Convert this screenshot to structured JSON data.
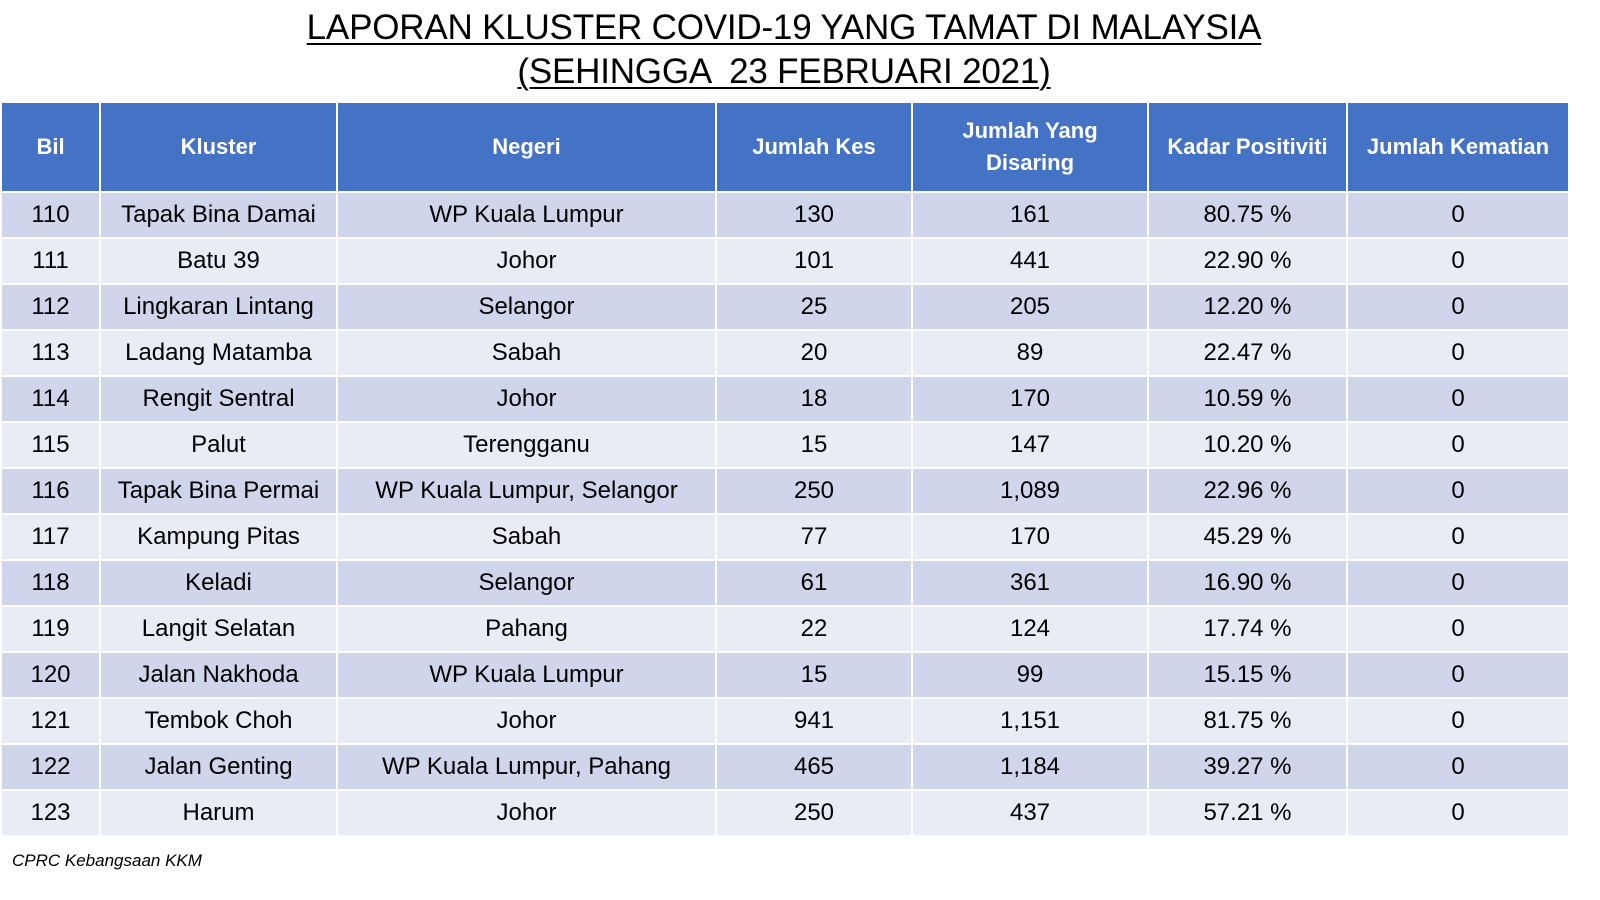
{
  "title": {
    "line1": "LAPORAN KLUSTER COVID-19 YANG TAMAT DI MALAYSIA",
    "line2": "(SEHINGGA  23 FEBRUARI 2021)"
  },
  "table": {
    "headers": {
      "bil": "Bil",
      "kluster": "Kluster",
      "negeri": "Negeri",
      "jumlah_kes": "Jumlah Kes",
      "jumlah_disaring": "Jumlah Yang Disaring",
      "kadar_positiviti": "Kadar Positiviti",
      "jumlah_kematian": "Jumlah Kematian"
    },
    "rows": [
      {
        "bil": "110",
        "kluster": "Tapak Bina Damai",
        "negeri": "WP Kuala Lumpur",
        "kes": "130",
        "disaring": "161",
        "positiviti": "80.75 %",
        "kematian": "0"
      },
      {
        "bil": "111",
        "kluster": "Batu 39",
        "negeri": "Johor",
        "kes": "101",
        "disaring": "441",
        "positiviti": "22.90 %",
        "kematian": "0"
      },
      {
        "bil": "112",
        "kluster": "Lingkaran Lintang",
        "negeri": "Selangor",
        "kes": "25",
        "disaring": "205",
        "positiviti": "12.20 %",
        "kematian": "0"
      },
      {
        "bil": "113",
        "kluster": "Ladang Matamba",
        "negeri": "Sabah",
        "kes": "20",
        "disaring": "89",
        "positiviti": "22.47 %",
        "kematian": "0"
      },
      {
        "bil": "114",
        "kluster": "Rengit Sentral",
        "negeri": "Johor",
        "kes": "18",
        "disaring": "170",
        "positiviti": "10.59 %",
        "kematian": "0"
      },
      {
        "bil": "115",
        "kluster": "Palut",
        "negeri": "Terengganu",
        "kes": "15",
        "disaring": "147",
        "positiviti": "10.20 %",
        "kematian": "0"
      },
      {
        "bil": "116",
        "kluster": "Tapak Bina Permai",
        "negeri": "WP Kuala Lumpur, Selangor",
        "kes": "250",
        "disaring": "1,089",
        "positiviti": "22.96 %",
        "kematian": "0"
      },
      {
        "bil": "117",
        "kluster": "Kampung Pitas",
        "negeri": "Sabah",
        "kes": "77",
        "disaring": "170",
        "positiviti": "45.29 %",
        "kematian": "0"
      },
      {
        "bil": "118",
        "kluster": "Keladi",
        "negeri": "Selangor",
        "kes": "61",
        "disaring": "361",
        "positiviti": "16.90 %",
        "kematian": "0"
      },
      {
        "bil": "119",
        "kluster": "Langit Selatan",
        "negeri": "Pahang",
        "kes": "22",
        "disaring": "124",
        "positiviti": "17.74 %",
        "kematian": "0"
      },
      {
        "bil": "120",
        "kluster": "Jalan Nakhoda",
        "negeri": "WP Kuala Lumpur",
        "kes": "15",
        "disaring": "99",
        "positiviti": "15.15 %",
        "kematian": "0"
      },
      {
        "bil": "121",
        "kluster": "Tembok Choh",
        "negeri": "Johor",
        "kes": "941",
        "disaring": "1,151",
        "positiviti": "81.75 %",
        "kematian": "0"
      },
      {
        "bil": "122",
        "kluster": "Jalan Genting",
        "negeri": "WP Kuala Lumpur, Pahang",
        "kes": "465",
        "disaring": "1,184",
        "positiviti": "39.27 %",
        "kematian": "0"
      },
      {
        "bil": "123",
        "kluster": "Harum",
        "negeri": "Johor",
        "kes": "250",
        "disaring": "437",
        "positiviti": "57.21 %",
        "kematian": "0"
      }
    ]
  },
  "footer": {
    "source": "CPRC Kebangsaan KKM"
  },
  "colors": {
    "header_bg": "#4472c4",
    "row_odd_bg": "#cfd5ea",
    "row_even_bg": "#e9ebf5"
  }
}
